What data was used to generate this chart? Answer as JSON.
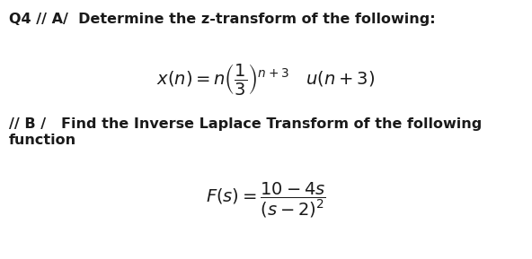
{
  "bg_color": "#ffffff",
  "text_color": "#1a1a1a",
  "title": "Q4 // A/  Determine the z-transform of the following:",
  "eq_a": "$x(n) = n\\left(\\dfrac{1}{3}\\right)^{n+3} \\quad u(n+3)$",
  "part_b1": "// B /   Find the Inverse Laplace Transform of the following",
  "part_b2": "function",
  "eq_b": "$F(s) = \\dfrac{10-4s}{(s-2)^{2}}$",
  "title_fontsize": 11.5,
  "eq_a_fontsize": 14,
  "body_fontsize": 11.5,
  "eq_b_fontsize": 14
}
